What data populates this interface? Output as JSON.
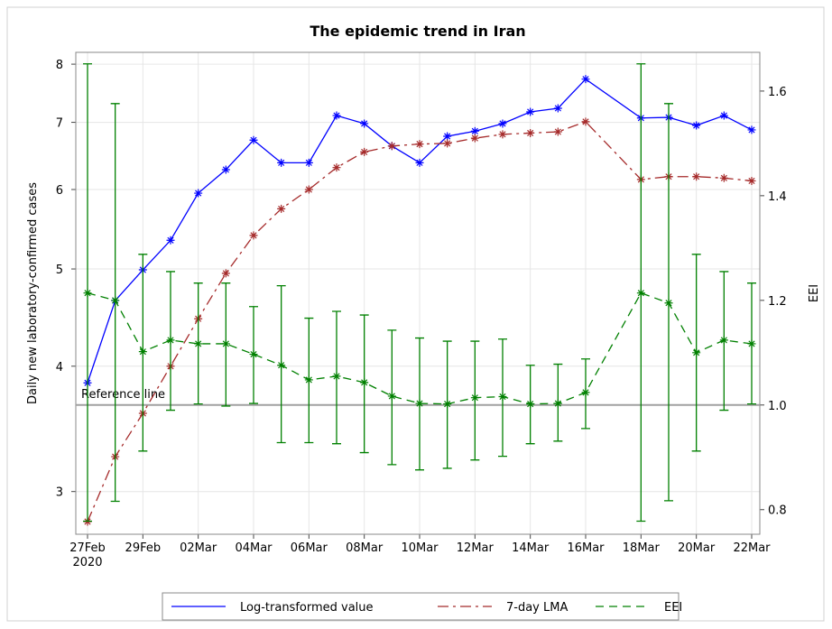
{
  "chart_data": {
    "type": "line",
    "title": "The epidemic trend in Iran",
    "y_label": "Daily new laboratory-confirmed cases",
    "y2_label": "EEI",
    "x": [
      "2020-02-27",
      "2020-02-28",
      "2020-02-29",
      "2020-03-01",
      "2020-03-02",
      "2020-03-03",
      "2020-03-04",
      "2020-03-05",
      "2020-03-06",
      "2020-03-07",
      "2020-03-08",
      "2020-03-09",
      "2020-03-10",
      "2020-03-11",
      "2020-03-12",
      "2020-03-13",
      "2020-03-14",
      "2020-03-15",
      "2020-03-16",
      "2020-03-18",
      "2020-03-19",
      "2020-03-20",
      "2020-03-21",
      "2020-03-22"
    ],
    "xlim": [
      "2020-02-27",
      "2020-03-22"
    ],
    "xticks": [
      {
        "value": "2020-02-27",
        "label": "27Feb\n2020"
      },
      {
        "value": "2020-02-29",
        "label": "29Feb"
      },
      {
        "value": "2020-03-02",
        "label": "02Mar"
      },
      {
        "value": "2020-03-04",
        "label": "04Mar"
      },
      {
        "value": "2020-03-06",
        "label": "06Mar"
      },
      {
        "value": "2020-03-08",
        "label": "08Mar"
      },
      {
        "value": "2020-03-10",
        "label": "10Mar"
      },
      {
        "value": "2020-03-12",
        "label": "12Mar"
      },
      {
        "value": "2020-03-14",
        "label": "14Mar"
      },
      {
        "value": "2020-03-16",
        "label": "16Mar"
      },
      {
        "value": "2020-03-18",
        "label": "18Mar"
      },
      {
        "value": "2020-03-20",
        "label": "20Mar"
      },
      {
        "value": "2020-03-22",
        "label": "22Mar"
      }
    ],
    "ylog": true,
    "ylim": [
      2.72,
      8.22
    ],
    "yticks": [
      3,
      4,
      5,
      6,
      7,
      8
    ],
    "y2lim": [
      0.753,
      1.674
    ],
    "y2ticks": [
      0.8,
      1.0,
      1.2,
      1.4,
      1.6
    ],
    "grid": true,
    "legend": "bottom",
    "reference_line": {
      "value": 1.0,
      "label": "Reference line",
      "color": "#a0a0a0",
      "axis": "y2"
    },
    "series": [
      {
        "name": "Log-transformed value",
        "color": "#0000ff",
        "dash": "solid",
        "values": [
          3.85,
          4.65,
          4.99,
          5.34,
          5.95,
          6.28,
          6.72,
          6.38,
          6.38,
          7.11,
          6.98,
          6.63,
          6.38,
          6.78,
          6.86,
          6.98,
          7.17,
          7.23,
          7.73,
          7.07,
          7.08,
          6.95,
          7.11,
          6.88
        ]
      },
      {
        "name": "7-day LMA",
        "color": "#a52a2a",
        "dash": "dash-dot",
        "values": [
          2.8,
          3.25,
          3.59,
          4.0,
          4.46,
          4.95,
          5.4,
          5.74,
          6.0,
          6.31,
          6.54,
          6.63,
          6.66,
          6.67,
          6.75,
          6.81,
          6.83,
          6.85,
          7.01,
          6.14,
          6.18,
          6.18,
          6.16,
          6.12
        ]
      },
      {
        "name": "EEI",
        "color": "#008000",
        "dash": "dash",
        "axis": "y2",
        "values": [
          1.214,
          1.2,
          1.102,
          1.124,
          1.117,
          1.117,
          1.097,
          1.076,
          1.048,
          1.055,
          1.043,
          1.017,
          1.003,
          1.002,
          1.014,
          1.016,
          1.002,
          1.003,
          1.024,
          1.214,
          1.195,
          1.1,
          1.124,
          1.117
        ],
        "lower": [
          0.778,
          0.816,
          0.912,
          0.99,
          1.002,
          0.998,
          1.003,
          0.928,
          0.928,
          0.926,
          0.909,
          0.886,
          0.876,
          0.879,
          0.895,
          0.902,
          0.926,
          0.931,
          0.955,
          0.778,
          0.817,
          0.912,
          0.99,
          1.002
        ],
        "upper": [
          1.652,
          1.576,
          1.288,
          1.255,
          1.233,
          1.233,
          1.188,
          1.228,
          1.166,
          1.179,
          1.172,
          1.143,
          1.128,
          1.122,
          1.122,
          1.126,
          1.076,
          1.078,
          1.088,
          1.652,
          1.576,
          1.288,
          1.255,
          1.233
        ]
      }
    ]
  }
}
